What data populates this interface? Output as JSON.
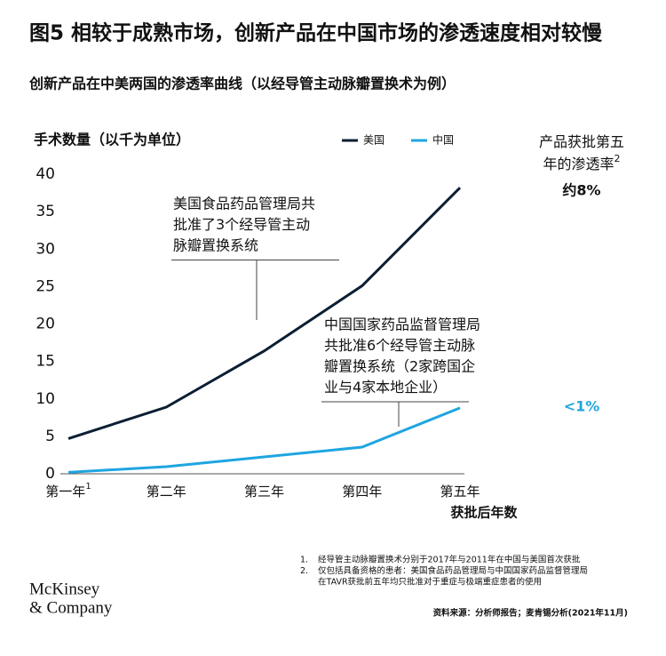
{
  "chart_data": {
    "type": "line",
    "title": "图5 相较于成熟市场，创新产品在中国市场的渗透速度相对较慢",
    "subtitle": "创新产品在中美两国的渗透率曲线（以经导管主动脉瓣置换术为例）",
    "y_label": "手术数量（以千为单位）",
    "x_label": "获批后年数",
    "categories": [
      "第一年",
      "第二年",
      "第三年",
      "第四年",
      "第五年"
    ],
    "first_category_note": "1",
    "series": [
      {
        "name": "美国",
        "color": "#0b1f33",
        "values": [
          4.7,
          8.9,
          16.4,
          25.1,
          38.2
        ],
        "end_label": "约8%"
      },
      {
        "name": "中国",
        "color": "#1fa5e0",
        "values": [
          0.2,
          0.95,
          2.25,
          3.56,
          8.8
        ],
        "end_label": "<1%"
      }
    ],
    "ylim": [
      0,
      40
    ],
    "yticks": [
      0,
      5,
      10,
      15,
      20,
      25,
      30,
      35,
      40
    ],
    "legend": "top",
    "end_label_title": [
      "产品获批第五",
      "年的渗透率"
    ],
    "end_label_note": "2",
    "annotations": [
      {
        "lines": [
          "美国食品药品管理局共",
          "批准了3个经导管主动",
          "脉瓣置换系统"
        ]
      },
      {
        "lines": [
          "中国国家药品监督管理局",
          "共批准6个经导管主动脉",
          "瓣置换系统（2家跨国企",
          "业与4家本地企业）"
        ]
      }
    ],
    "footnotes": [
      {
        "mark": "1.",
        "lines": [
          "经导管主动脉瓣置换术分别于2017年与2011年在中国与美国首次获批"
        ]
      },
      {
        "mark": "2.",
        "lines": [
          "仅包括具备资格的患者：美国食品药品管理局与中国国家药品监督管理局",
          "在TAVR获批前五年均只批准对于重症与极端重症患者的使用"
        ]
      }
    ],
    "source": "资料来源：分析师报告；麦肯锡分析(2021年11月)",
    "logo": [
      "McKinsey",
      "& Company"
    ]
  }
}
